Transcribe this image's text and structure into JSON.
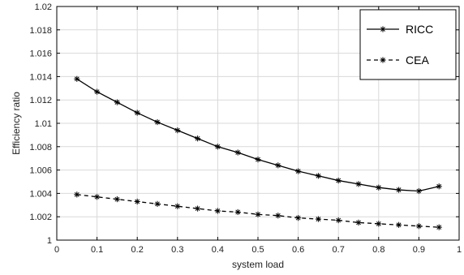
{
  "chart_data": {
    "type": "line",
    "xlabel": "system load",
    "ylabel": "Efficiency ratio",
    "xlim": [
      0,
      1
    ],
    "ylim": [
      1,
      1.02
    ],
    "xticks": [
      "0",
      "0.1",
      "0.2",
      "0.3",
      "0.4",
      "0.5",
      "0.6",
      "0.7",
      "0.8",
      "0.9",
      "1"
    ],
    "yticks": [
      "1",
      "1.002",
      "1.004",
      "1.006",
      "1.008",
      "1.01",
      "1.012",
      "1.014",
      "1.016",
      "1.018",
      "1.02"
    ],
    "grid": true,
    "legend_position": "top-right",
    "x": [
      0.05,
      0.1,
      0.15,
      0.2,
      0.25,
      0.3,
      0.35,
      0.4,
      0.45,
      0.5,
      0.55,
      0.6,
      0.65,
      0.7,
      0.75,
      0.8,
      0.85,
      0.9,
      0.95
    ],
    "series": [
      {
        "name": "RICC",
        "style": "solid",
        "marker": "asterisk",
        "color": "#000000",
        "values": [
          1.0138,
          1.0127,
          1.0118,
          1.0109,
          1.0101,
          1.0094,
          1.0087,
          1.008,
          1.0075,
          1.0069,
          1.0064,
          1.0059,
          1.0055,
          1.0051,
          1.0048,
          1.0045,
          1.0043,
          1.0042,
          1.0046
        ]
      },
      {
        "name": "CEA",
        "style": "dashed",
        "marker": "asterisk",
        "color": "#000000",
        "values": [
          1.0039,
          1.0037,
          1.0035,
          1.0033,
          1.0031,
          1.0029,
          1.0027,
          1.0025,
          1.0024,
          1.0022,
          1.0021,
          1.0019,
          1.0018,
          1.0017,
          1.0015,
          1.0014,
          1.0013,
          1.0012,
          1.0011
        ]
      }
    ]
  }
}
